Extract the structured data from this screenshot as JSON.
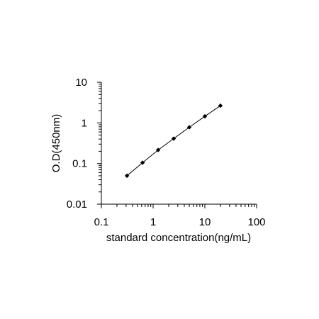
{
  "chart_data": {
    "type": "scatter",
    "title": "",
    "xlabel": "standard concentration(ng/mL)",
    "ylabel": "O.D(450nm)",
    "x_scale": "log",
    "y_scale": "log",
    "xlim": [
      0.1,
      100
    ],
    "ylim": [
      0.01,
      10
    ],
    "x_tick_labels": [
      "0.1",
      "1",
      "10",
      "100"
    ],
    "y_tick_labels": [
      "0.01",
      "0.1",
      "1",
      "10"
    ],
    "grid": false,
    "legend": "none",
    "series": [
      {
        "x": [
          0.3125,
          0.625,
          1.25,
          2.5,
          5,
          10,
          20
        ],
        "y": [
          0.05,
          0.105,
          0.215,
          0.41,
          0.78,
          1.45,
          2.65
        ],
        "marker": "diamond",
        "color": "#000000",
        "line": "connected"
      }
    ]
  }
}
